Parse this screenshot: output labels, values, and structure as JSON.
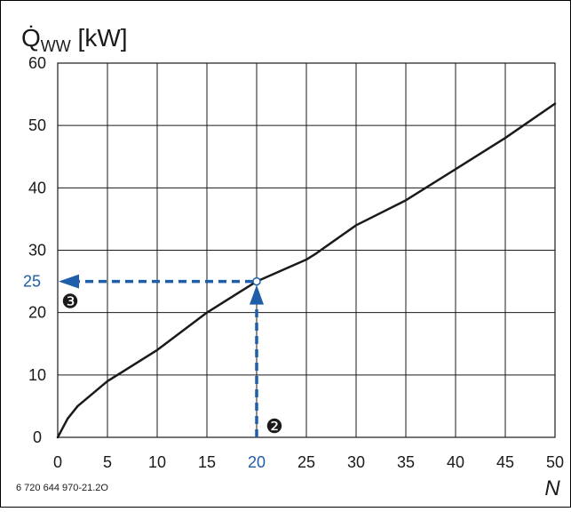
{
  "chart_data": {
    "type": "line",
    "title": "",
    "ylabel_main": "Q̇",
    "ylabel_sub": "WW",
    "ylabel_unit": " [kW]",
    "xlabel": "N",
    "xlim": [
      0,
      50
    ],
    "ylim": [
      0,
      60
    ],
    "grid": true,
    "x_ticks": [
      "0",
      "5",
      "10",
      "15",
      "20",
      "25",
      "30",
      "35",
      "40",
      "45",
      "50"
    ],
    "y_ticks": [
      "0",
      "10",
      "20",
      "30",
      "40",
      "50",
      "60"
    ],
    "series": [
      {
        "x": [
          0,
          1,
          2,
          5,
          10,
          15,
          20,
          25,
          26,
          30,
          35,
          40,
          45,
          50
        ],
        "y": [
          0,
          3,
          5,
          9,
          14,
          20,
          25,
          28.5,
          29.5,
          34,
          38,
          43,
          48,
          53.5
        ],
        "color": "#1a1a1a"
      }
    ],
    "annotation": {
      "x": 20,
      "y": 25,
      "x_label": "20",
      "y_label": "25",
      "x_marker": "❷",
      "y_marker": "❸",
      "color": "#1f5ea8"
    },
    "footnote": "6 720 644 970-21.2O"
  }
}
